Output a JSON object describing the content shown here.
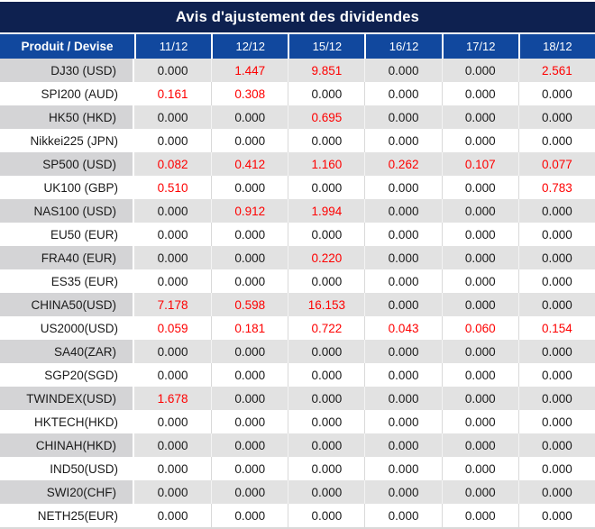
{
  "title": "Avis d'ajustement des dividendes",
  "table": {
    "product_header": "Produit / Devise",
    "date_headers": [
      "11/12",
      "12/12",
      "15/12",
      "16/12",
      "17/12",
      "18/12"
    ],
    "rows": [
      {
        "product": "DJ30 (USD)",
        "values": [
          "0.000",
          "1.447",
          "9.851",
          "0.000",
          "0.000",
          "2.561"
        ],
        "red": [
          false,
          true,
          true,
          false,
          false,
          true
        ]
      },
      {
        "product": "SPI200 (AUD)",
        "values": [
          "0.161",
          "0.308",
          "0.000",
          "0.000",
          "0.000",
          "0.000"
        ],
        "red": [
          true,
          true,
          false,
          false,
          false,
          false
        ]
      },
      {
        "product": "HK50 (HKD)",
        "values": [
          "0.000",
          "0.000",
          "0.695",
          "0.000",
          "0.000",
          "0.000"
        ],
        "red": [
          false,
          false,
          true,
          false,
          false,
          false
        ]
      },
      {
        "product": "Nikkei225 (JPN)",
        "values": [
          "0.000",
          "0.000",
          "0.000",
          "0.000",
          "0.000",
          "0.000"
        ],
        "red": [
          false,
          false,
          false,
          false,
          false,
          false
        ]
      },
      {
        "product": "SP500 (USD)",
        "values": [
          "0.082",
          "0.412",
          "1.160",
          "0.262",
          "0.107",
          "0.077"
        ],
        "red": [
          true,
          true,
          true,
          true,
          true,
          true
        ]
      },
      {
        "product": "UK100 (GBP)",
        "values": [
          "0.510",
          "0.000",
          "0.000",
          "0.000",
          "0.000",
          "0.783"
        ],
        "red": [
          true,
          false,
          false,
          false,
          false,
          true
        ]
      },
      {
        "product": "NAS100 (USD)",
        "values": [
          "0.000",
          "0.912",
          "1.994",
          "0.000",
          "0.000",
          "0.000"
        ],
        "red": [
          false,
          true,
          true,
          false,
          false,
          false
        ]
      },
      {
        "product": "EU50 (EUR)",
        "values": [
          "0.000",
          "0.000",
          "0.000",
          "0.000",
          "0.000",
          "0.000"
        ],
        "red": [
          false,
          false,
          false,
          false,
          false,
          false
        ]
      },
      {
        "product": "FRA40 (EUR)",
        "values": [
          "0.000",
          "0.000",
          "0.220",
          "0.000",
          "0.000",
          "0.000"
        ],
        "red": [
          false,
          false,
          true,
          false,
          false,
          false
        ]
      },
      {
        "product": "ES35 (EUR)",
        "values": [
          "0.000",
          "0.000",
          "0.000",
          "0.000",
          "0.000",
          "0.000"
        ],
        "red": [
          false,
          false,
          false,
          false,
          false,
          false
        ]
      },
      {
        "product": "CHINA50(USD)",
        "values": [
          "7.178",
          "0.598",
          "16.153",
          "0.000",
          "0.000",
          "0.000"
        ],
        "red": [
          true,
          true,
          true,
          false,
          false,
          false
        ]
      },
      {
        "product": "US2000(USD)",
        "values": [
          "0.059",
          "0.181",
          "0.722",
          "0.043",
          "0.060",
          "0.154"
        ],
        "red": [
          true,
          true,
          true,
          true,
          true,
          true
        ]
      },
      {
        "product": "SA40(ZAR)",
        "values": [
          "0.000",
          "0.000",
          "0.000",
          "0.000",
          "0.000",
          "0.000"
        ],
        "red": [
          false,
          false,
          false,
          false,
          false,
          false
        ]
      },
      {
        "product": "SGP20(SGD)",
        "values": [
          "0.000",
          "0.000",
          "0.000",
          "0.000",
          "0.000",
          "0.000"
        ],
        "red": [
          false,
          false,
          false,
          false,
          false,
          false
        ]
      },
      {
        "product": "TWINDEX(USD)",
        "values": [
          "1.678",
          "0.000",
          "0.000",
          "0.000",
          "0.000",
          "0.000"
        ],
        "red": [
          true,
          false,
          false,
          false,
          false,
          false
        ]
      },
      {
        "product": "HKTECH(HKD)",
        "values": [
          "0.000",
          "0.000",
          "0.000",
          "0.000",
          "0.000",
          "0.000"
        ],
        "red": [
          false,
          false,
          false,
          false,
          false,
          false
        ]
      },
      {
        "product": "CHINAH(HKD)",
        "values": [
          "0.000",
          "0.000",
          "0.000",
          "0.000",
          "0.000",
          "0.000"
        ],
        "red": [
          false,
          false,
          false,
          false,
          false,
          false
        ]
      },
      {
        "product": "IND50(USD)",
        "values": [
          "0.000",
          "0.000",
          "0.000",
          "0.000",
          "0.000",
          "0.000"
        ],
        "red": [
          false,
          false,
          false,
          false,
          false,
          false
        ]
      },
      {
        "product": "SWI20(CHF)",
        "values": [
          "0.000",
          "0.000",
          "0.000",
          "0.000",
          "0.000",
          "0.000"
        ],
        "red": [
          false,
          false,
          false,
          false,
          false,
          false
        ]
      },
      {
        "product": "NETH25(EUR)",
        "values": [
          "0.000",
          "0.000",
          "0.000",
          "0.000",
          "0.000",
          "0.000"
        ],
        "red": [
          false,
          false,
          false,
          false,
          false,
          false
        ]
      }
    ]
  },
  "colors": {
    "title_bar_bg": "#0e2150",
    "header_row_bg": "#11489e",
    "header_text": "#ffffff",
    "alt_row_product_bg": "#d4d4d6",
    "alt_row_value_bg": "#e2e2e2",
    "value_text": "#1a1a1a",
    "highlight_red": "#fe0000"
  }
}
